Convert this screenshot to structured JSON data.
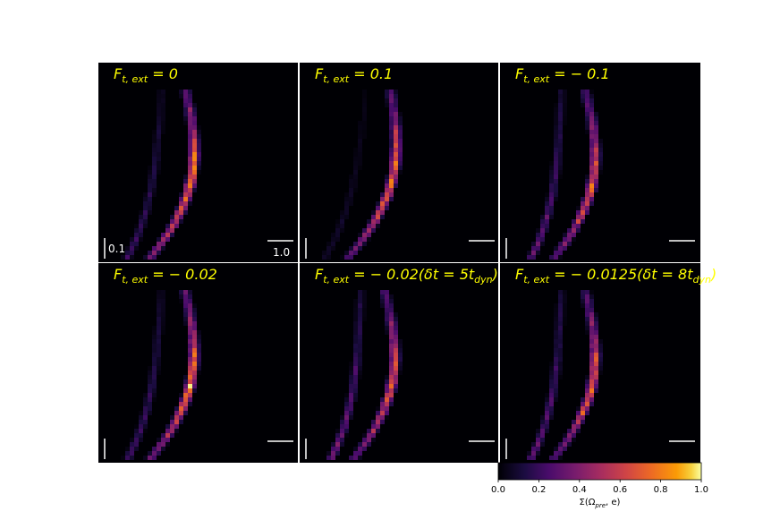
{
  "chart_data": {
    "type": "heatmap",
    "panels": [
      {
        "title": "F_{t,ext}=0",
        "title_main": "F",
        "title_sub": "t, ext",
        "title_rest": " = 0",
        "band": {
          "fill": 1.0,
          "skew": 0.0,
          "outer": 0.35
        }
      },
      {
        "title": "F_{t,ext}=0.1",
        "title_main": "F",
        "title_sub": "t, ext",
        "title_rest": " = 0.1",
        "band": {
          "fill": 0.9,
          "skew": -0.6,
          "outer": 0.15
        }
      },
      {
        "title": "F_{t,ext}=-0.1",
        "title_main": "F",
        "title_sub": "t, ext",
        "title_rest": " = − 0.1",
        "band": {
          "fill": 0.85,
          "skew": 0.4,
          "outer": 0.55
        }
      },
      {
        "title": "F_{t,ext}=-0.02",
        "title_main": "F",
        "title_sub": "t, ext",
        "title_rest": " = − 0.02",
        "band": {
          "fill": 0.95,
          "skew": 0.1,
          "outer": 0.4
        }
      },
      {
        "title": "F_{t,ext}=-0.02(δt=5t_dyn)",
        "title_main": "F",
        "title_sub": "t, ext",
        "title_rest": " = − 0.02(δt = 5t",
        "title_sub2": "dyn",
        "title_end": ")",
        "band": {
          "fill": 0.85,
          "skew": 0.45,
          "outer": 0.6
        }
      },
      {
        "title": "F_{t,ext}=-0.0125(δt=8t_dyn)",
        "title_main": "F",
        "title_sub": "t, ext",
        "title_rest": " = − 0.0125(δt = 8t",
        "title_sub2": "dyn",
        "title_end": ")",
        "band": {
          "fill": 0.85,
          "skew": 0.4,
          "outer": 0.55
        }
      }
    ],
    "scalebars": {
      "vertical_label": "0.1",
      "horizontal_label": "1.0"
    },
    "colorbar": {
      "colormap": "inferno",
      "range": [
        0.0,
        1.0
      ],
      "ticks": [
        "0.0",
        "0.2",
        "0.4",
        "0.6",
        "0.8",
        "1.0"
      ],
      "label_main": "Σ(Ω",
      "label_sub": "pre",
      "label_end": ", e)"
    }
  }
}
